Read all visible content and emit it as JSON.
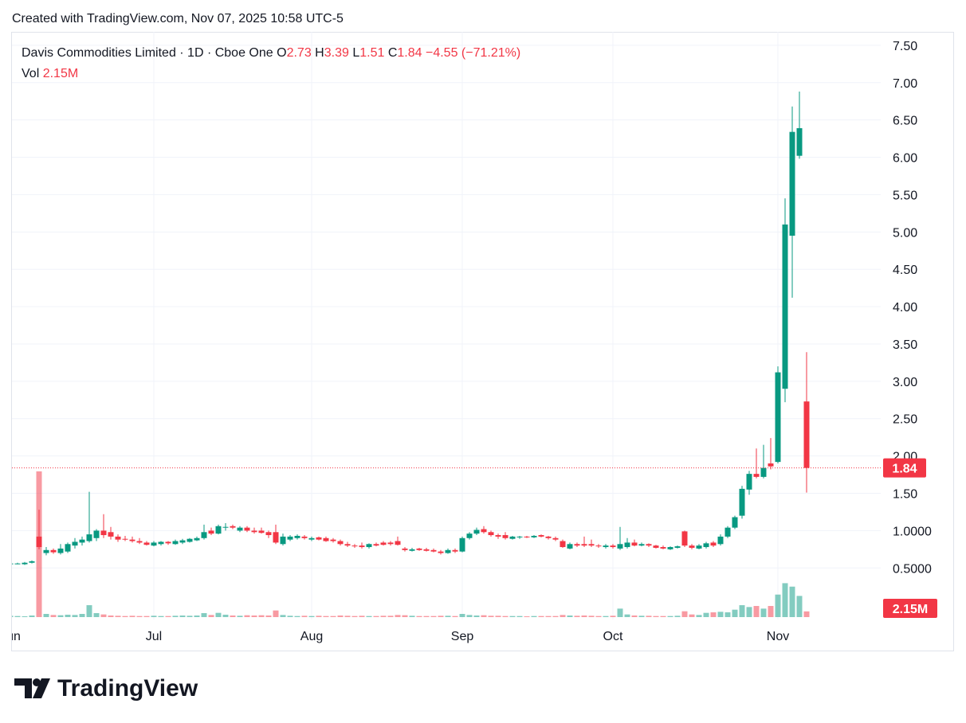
{
  "header": "Created with TradingView.com, Nov 07, 2025 10:58 UTC-5",
  "footer_brand": "TradingView",
  "chart_data": {
    "type": "candlestick",
    "title": "Davis Commodities Limited · 1D · Cboe One",
    "ohlc_labels": [
      "O",
      "H",
      "L",
      "C"
    ],
    "change": "−4.55 (−71.21%)",
    "volume_label": "Vol",
    "up_color": "#089981",
    "down_color": "#f23645",
    "grid": true,
    "categories": [
      "Jun",
      null,
      null,
      null,
      null,
      null,
      null,
      null,
      null,
      null,
      null,
      null,
      null,
      null,
      null,
      null,
      null,
      null,
      null,
      null,
      "Jul",
      null,
      null,
      null,
      null,
      null,
      null,
      null,
      null,
      null,
      null,
      null,
      null,
      null,
      null,
      null,
      null,
      null,
      null,
      null,
      null,
      null,
      "Aug",
      null,
      null,
      null,
      null,
      null,
      null,
      null,
      null,
      null,
      null,
      null,
      null,
      null,
      null,
      null,
      null,
      null,
      null,
      null,
      null,
      "Sep",
      null,
      null,
      null,
      null,
      null,
      null,
      null,
      null,
      null,
      null,
      null,
      null,
      null,
      null,
      null,
      null,
      null,
      null,
      null,
      null,
      "Oct",
      null,
      null,
      null,
      null,
      null,
      null,
      null,
      null,
      null,
      null,
      null,
      null,
      null,
      null,
      null,
      null,
      null,
      null,
      null,
      null,
      null,
      null,
      "Nov",
      null,
      null,
      null,
      null
    ],
    "open": [
      0.55,
      0.56,
      0.55,
      0.57,
      0.92,
      0.7,
      0.74,
      0.7,
      0.72,
      0.8,
      0.84,
      0.86,
      0.9,
      1.0,
      0.98,
      0.92,
      0.89,
      0.88,
      0.86,
      0.84,
      0.8,
      0.82,
      0.85,
      0.82,
      0.84,
      0.85,
      0.87,
      0.9,
      1.0,
      0.96,
      1.04,
      1.06,
      1.0,
      1.04,
      1.0,
      1.0,
      0.98,
      0.98,
      0.82,
      0.88,
      0.9,
      0.92,
      0.88,
      0.91,
      0.9,
      0.88,
      0.86,
      0.82,
      0.8,
      0.8,
      0.78,
      0.82,
      0.84,
      0.84,
      0.86,
      0.76,
      0.73,
      0.76,
      0.75,
      0.74,
      0.72,
      0.7,
      0.74,
      0.72,
      0.9,
      0.96,
      1.02,
      0.98,
      0.94,
      0.94,
      0.89,
      0.91,
      0.92,
      0.91,
      0.94,
      0.92,
      0.9,
      0.86,
      0.76,
      0.82,
      0.82,
      0.82,
      0.8,
      0.78,
      0.8,
      0.76,
      0.78,
      0.84,
      0.8,
      0.82,
      0.8,
      0.78,
      0.75,
      0.77,
      0.99,
      0.8,
      0.76,
      0.78,
      0.84,
      0.82,
      0.92,
      1.04,
      1.2,
      1.55,
      1.76,
      1.72,
      1.9,
      1.92,
      2.9,
      4.95,
      6.02,
      2.73
    ],
    "high": [
      0.57,
      0.57,
      0.58,
      0.6,
      1.28,
      0.78,
      0.76,
      0.82,
      0.84,
      0.9,
      0.92,
      1.52,
      1.02,
      1.22,
      1.05,
      0.95,
      0.93,
      0.92,
      0.9,
      0.86,
      0.86,
      0.86,
      0.86,
      0.88,
      0.89,
      0.9,
      0.92,
      1.08,
      1.04,
      1.08,
      1.1,
      1.08,
      1.06,
      1.06,
      1.04,
      1.04,
      1.0,
      1.08,
      0.96,
      0.94,
      0.95,
      0.94,
      0.92,
      0.92,
      0.92,
      0.9,
      0.88,
      0.85,
      0.82,
      0.84,
      0.83,
      0.84,
      0.86,
      0.86,
      0.92,
      0.78,
      0.77,
      0.77,
      0.77,
      0.76,
      0.74,
      0.76,
      0.76,
      0.92,
      0.98,
      1.04,
      1.06,
      1.0,
      0.96,
      0.98,
      0.93,
      0.93,
      0.93,
      0.94,
      0.95,
      0.93,
      0.92,
      0.88,
      0.84,
      0.84,
      0.92,
      0.88,
      0.82,
      0.82,
      0.82,
      1.05,
      0.9,
      0.88,
      0.84,
      0.83,
      0.81,
      0.8,
      0.79,
      0.8,
      1.0,
      0.82,
      0.82,
      0.85,
      0.86,
      0.95,
      1.06,
      1.2,
      1.6,
      1.8,
      2.1,
      2.15,
      2.24,
      3.2,
      5.45,
      6.68,
      6.88,
      3.39
    ],
    "low": [
      0.54,
      0.55,
      0.54,
      0.56,
      0.75,
      0.67,
      0.69,
      0.68,
      0.7,
      0.76,
      0.8,
      0.84,
      0.86,
      0.9,
      0.88,
      0.85,
      0.86,
      0.84,
      0.82,
      0.8,
      0.79,
      0.8,
      0.81,
      0.81,
      0.82,
      0.84,
      0.86,
      0.88,
      0.94,
      0.95,
      1.0,
      1.02,
      0.98,
      0.98,
      0.96,
      0.96,
      0.9,
      0.82,
      0.8,
      0.86,
      0.88,
      0.88,
      0.86,
      0.87,
      0.85,
      0.84,
      0.8,
      0.78,
      0.77,
      0.76,
      0.76,
      0.79,
      0.8,
      0.8,
      0.8,
      0.72,
      0.72,
      0.73,
      0.72,
      0.71,
      0.68,
      0.69,
      0.7,
      0.71,
      0.88,
      0.94,
      0.96,
      0.92,
      0.89,
      0.88,
      0.88,
      0.89,
      0.9,
      0.9,
      0.91,
      0.88,
      0.86,
      0.77,
      0.75,
      0.78,
      0.78,
      0.78,
      0.77,
      0.76,
      0.76,
      0.74,
      0.76,
      0.79,
      0.79,
      0.78,
      0.76,
      0.75,
      0.74,
      0.76,
      0.78,
      0.75,
      0.75,
      0.76,
      0.78,
      0.8,
      0.9,
      1.02,
      1.16,
      1.48,
      1.7,
      1.7,
      1.82,
      1.9,
      2.72,
      4.12,
      5.98,
      1.51
    ],
    "close": [
      0.56,
      0.56,
      0.57,
      0.59,
      0.78,
      0.74,
      0.71,
      0.76,
      0.82,
      0.85,
      0.88,
      0.95,
      1.0,
      0.94,
      0.92,
      0.88,
      0.88,
      0.86,
      0.84,
      0.81,
      0.84,
      0.85,
      0.83,
      0.86,
      0.87,
      0.89,
      0.9,
      0.98,
      0.96,
      1.06,
      1.05,
      1.04,
      1.04,
      1.0,
      0.98,
      0.97,
      0.94,
      0.84,
      0.92,
      0.92,
      0.93,
      0.9,
      0.9,
      0.88,
      0.86,
      0.86,
      0.82,
      0.8,
      0.79,
      0.78,
      0.82,
      0.8,
      0.81,
      0.82,
      0.81,
      0.74,
      0.75,
      0.74,
      0.73,
      0.72,
      0.7,
      0.74,
      0.72,
      0.9,
      0.96,
      1.01,
      0.98,
      0.94,
      0.92,
      0.9,
      0.92,
      0.92,
      0.91,
      0.93,
      0.92,
      0.9,
      0.88,
      0.78,
      0.82,
      0.8,
      0.8,
      0.8,
      0.79,
      0.8,
      0.78,
      0.82,
      0.84,
      0.8,
      0.82,
      0.8,
      0.77,
      0.76,
      0.78,
      0.79,
      0.8,
      0.77,
      0.8,
      0.83,
      0.8,
      0.92,
      1.04,
      1.18,
      1.56,
      1.76,
      1.72,
      1.84,
      1.86,
      3.12,
      5.1,
      6.34,
      6.39,
      1.84
    ],
    "volume": {
      "values": [
        0.5,
        0.4,
        0.3,
        0.6,
        55,
        1.2,
        0.8,
        0.7,
        0.9,
        0.8,
        1.2,
        4.5,
        1.5,
        1.0,
        0.6,
        0.5,
        0.4,
        0.5,
        0.4,
        0.4,
        0.5,
        0.4,
        0.4,
        0.5,
        0.6,
        0.5,
        0.6,
        1.5,
        0.8,
        1.6,
        0.9,
        0.6,
        0.5,
        0.7,
        0.6,
        0.7,
        0.6,
        2.5,
        0.8,
        0.5,
        0.4,
        0.5,
        0.4,
        0.5,
        0.4,
        0.4,
        0.6,
        0.5,
        0.4,
        0.5,
        0.4,
        0.4,
        0.5,
        0.5,
        0.8,
        0.7,
        0.5,
        0.4,
        0.4,
        0.4,
        0.5,
        0.5,
        0.4,
        1.2,
        0.8,
        0.6,
        0.7,
        0.5,
        0.5,
        0.4,
        0.4,
        0.4,
        0.3,
        0.4,
        0.4,
        0.4,
        0.4,
        0.8,
        0.6,
        0.5,
        0.6,
        0.5,
        0.4,
        0.4,
        0.5,
        3.2,
        1.0,
        0.6,
        0.5,
        0.5,
        0.4,
        0.4,
        0.4,
        0.5,
        2.2,
        1.0,
        0.8,
        1.6,
        1.8,
        2.0,
        1.8,
        2.8,
        4.5,
        3.8,
        4.2,
        3.2,
        4.2,
        8.5,
        12.8,
        11.5,
        8.0,
        2.15
      ],
      "last_label": "2.15M"
    },
    "ylim": [
      -0.19,
      7.68
    ],
    "yticks": [
      {
        "value": 7.5,
        "label": "7.50"
      },
      {
        "value": 7,
        "label": "7.00"
      },
      {
        "value": 6.5,
        "label": "6.50"
      },
      {
        "value": 6,
        "label": "6.00"
      },
      {
        "value": 5.5,
        "label": "5.50"
      },
      {
        "value": 5,
        "label": "5.00"
      },
      {
        "value": 4.5,
        "label": "4.50"
      },
      {
        "value": 4,
        "label": "4.00"
      },
      {
        "value": 3.5,
        "label": "3.50"
      },
      {
        "value": 3,
        "label": "3.00"
      },
      {
        "value": 2.5,
        "label": "2.50"
      },
      {
        "value": 2,
        "label": "2.00"
      },
      {
        "value": 1.5,
        "label": "1.50"
      },
      {
        "value": 1,
        "label": "1.0000"
      },
      {
        "value": 0.5,
        "label": "0.5000"
      }
    ]
  }
}
